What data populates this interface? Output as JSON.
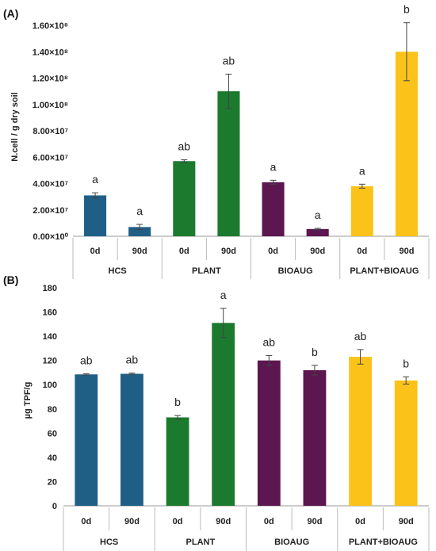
{
  "chart_data": [
    {
      "type": "bar",
      "panel_label": "(A)",
      "ylabel": "N.cell / g dry soil",
      "ylim": [
        0,
        160000000
      ],
      "yticks": [
        0,
        20000000,
        40000000,
        60000000,
        80000000,
        100000000,
        120000000,
        140000000,
        160000000
      ],
      "ytick_labels": [
        "0.00×10⁰",
        "2.00×10⁷",
        "4.00×10⁷",
        "6.00×10⁷",
        "8.00×10⁷",
        "1.00×10⁸",
        "1.20×10⁸",
        "1.40×10⁸",
        "1.60×10⁸"
      ],
      "categories": [
        "0d",
        "90d",
        "0d",
        "90d",
        "0d",
        "90d",
        "0d",
        "90d"
      ],
      "groups": [
        "HCS",
        "PLANT",
        "BIOAUG",
        "PLANT+BIOAUG"
      ],
      "values": [
        31000000,
        7000000,
        57000000,
        110000000,
        41000000,
        5500000,
        38000000,
        140000000
      ],
      "errors": [
        2000000,
        2000000,
        1000000,
        13000000,
        1500000,
        500000,
        1500000,
        22000000
      ],
      "significance": [
        "a",
        "a",
        "ab",
        "ab",
        "a",
        "a",
        "a",
        "b"
      ],
      "colors": [
        "#1f5f86",
        "#1f5f86",
        "#1c7a2e",
        "#1c7a2e",
        "#5c1650",
        "#5c1650",
        "#fbc31a",
        "#fbc31a"
      ]
    },
    {
      "type": "bar",
      "panel_label": "(B)",
      "ylabel": "µg TPF/g",
      "ylim": [
        0,
        180
      ],
      "yticks": [
        0,
        20,
        40,
        60,
        80,
        100,
        120,
        140,
        160,
        180
      ],
      "ytick_labels": [
        "0",
        "20",
        "40",
        "60",
        "80",
        "100",
        "120",
        "140",
        "160",
        "180"
      ],
      "categories": [
        "0d",
        "90d",
        "0d",
        "90d",
        "0d",
        "90d",
        "0d",
        "90d"
      ],
      "groups": [
        "HCS",
        "PLANT",
        "BIOAUG",
        "PLANT+BIOAUG"
      ],
      "values": [
        108.5,
        109,
        73,
        151,
        120,
        112,
        123,
        103.5
      ],
      "errors": [
        0.5,
        0.6,
        1.5,
        12,
        4,
        4,
        6,
        3
      ],
      "significance": [
        "ab",
        "ab",
        "b",
        "a",
        "ab",
        "b",
        "ab",
        "b"
      ],
      "colors": [
        "#1f5f86",
        "#1f5f86",
        "#1c7a2e",
        "#1c7a2e",
        "#5c1650",
        "#5c1650",
        "#fbc31a",
        "#fbc31a"
      ]
    }
  ]
}
